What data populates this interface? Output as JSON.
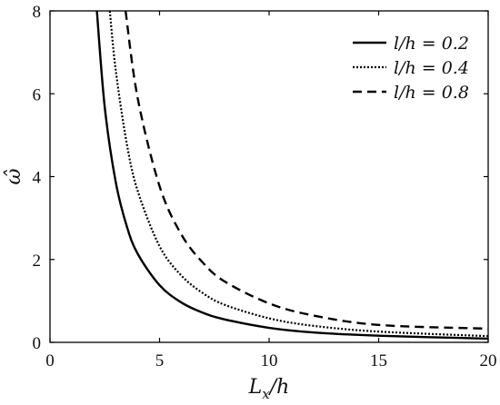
{
  "chart_data": {
    "type": "line",
    "xlabel": "L_x/h",
    "ylabel": "ω̂",
    "xlim": [
      0,
      20
    ],
    "ylim": [
      0,
      8
    ],
    "xticks": [
      0,
      5,
      10,
      15,
      20
    ],
    "yticks": [
      0,
      2,
      4,
      6,
      8
    ],
    "grid": false,
    "legend_position": "top-right",
    "series": [
      {
        "name": "l/h = 0.2",
        "style": "solid",
        "x": [
          2.14,
          2.5,
          3,
          3.5,
          4,
          5,
          6,
          7,
          8,
          10,
          12,
          15,
          20
        ],
        "y": [
          8.0,
          5.67,
          3.87,
          2.81,
          2.14,
          1.38,
          0.96,
          0.71,
          0.55,
          0.35,
          0.24,
          0.16,
          0.09
        ]
      },
      {
        "name": "l/h = 0.4",
        "style": "dotted",
        "x": [
          2.73,
          3,
          3.5,
          4,
          5,
          6,
          7,
          8,
          10,
          12,
          15,
          20
        ],
        "y": [
          8.0,
          6.57,
          4.81,
          3.66,
          2.32,
          1.61,
          1.18,
          0.9,
          0.58,
          0.4,
          0.26,
          0.15
        ]
      },
      {
        "name": "l/h = 0.8",
        "style": "dashed",
        "x": [
          3.45,
          4,
          5,
          6,
          7,
          8,
          10,
          12,
          15,
          20
        ],
        "y": [
          8.0,
          5.9,
          3.77,
          2.6,
          1.91,
          1.46,
          0.94,
          0.65,
          0.42,
          0.33
        ]
      }
    ]
  }
}
